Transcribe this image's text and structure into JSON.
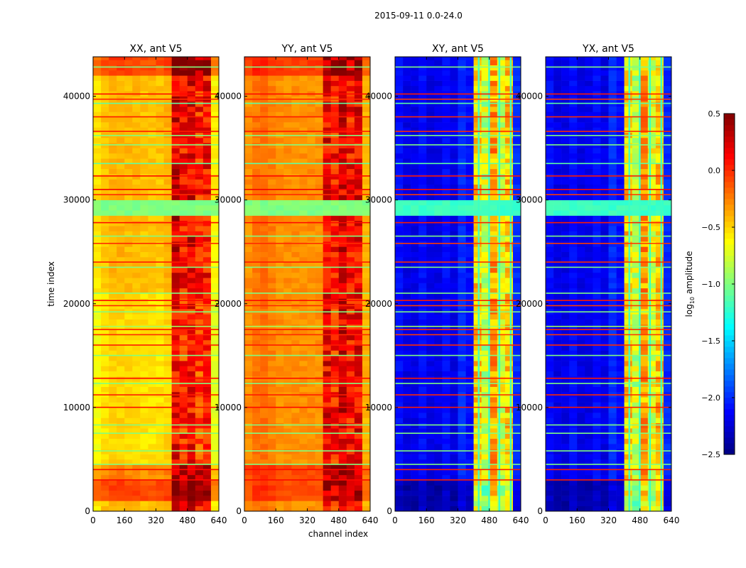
{
  "chart_data": {
    "type": "heatmap",
    "title": "2015-09-11 0.0-24.0",
    "xlabel": "channel index",
    "ylabel": "time index",
    "xlim": [
      0,
      640
    ],
    "ylim": [
      0,
      43800
    ],
    "xticks": [
      0,
      160,
      320,
      480,
      640
    ],
    "xtick_labels": [
      "0",
      "160",
      "320",
      "480",
      "640"
    ],
    "yticks": [
      0,
      10000,
      20000,
      30000,
      40000
    ],
    "ytick_labels": [
      "0",
      "10000",
      "20000",
      "30000",
      "40000"
    ],
    "colorbar": {
      "label_prefix": "log",
      "label_sub": "10",
      "label_suffix": " amplitude",
      "colormap": "jet",
      "range": [
        -2.5,
        0.5
      ],
      "ticks": [
        0.5,
        0.0,
        -0.5,
        -1.0,
        -1.5,
        -2.0,
        -2.5
      ],
      "tick_labels": [
        "0.5",
        "0.0",
        "−0.5",
        "−1.0",
        "−1.5",
        "−2.0",
        "−2.5"
      ]
    },
    "channel_bin_width": 40,
    "time_bin_width": 500,
    "panels": [
      {
        "title": "XX, ant V5",
        "channel_profile": [
          -0.55,
          -0.45,
          -0.4,
          -0.4,
          -0.42,
          -0.42,
          -0.45,
          -0.45,
          -0.45,
          -0.4,
          0.25,
          0.1,
          0.2,
          0.05,
          0.1,
          -0.6
        ],
        "bands": [
          {
            "start": 41800,
            "end": 43800,
            "offset": 0.35
          },
          {
            "start": 1000,
            "end": 3000,
            "offset": 0.35
          },
          {
            "start": 3000,
            "end": 4300,
            "offset": 0.15
          },
          {
            "start": 4300,
            "end": 21000,
            "offset": -0.1
          },
          {
            "start": 28500,
            "end": 29800,
            "value": -1.0
          }
        ],
        "vertical_lines": []
      },
      {
        "title": "YY, ant V5",
        "channel_profile": [
          -0.3,
          -0.22,
          -0.2,
          -0.25,
          -0.3,
          -0.3,
          -0.3,
          -0.3,
          -0.3,
          -0.3,
          0.15,
          0.05,
          0.22,
          0.1,
          0.15,
          -0.4
        ],
        "bands": [
          {
            "start": 41800,
            "end": 43800,
            "offset": 0.25
          },
          {
            "start": 1000,
            "end": 4300,
            "offset": 0.2
          },
          {
            "start": 28500,
            "end": 29800,
            "value": -1.0
          }
        ],
        "vertical_lines": []
      },
      {
        "title": "XY, ant V5",
        "channel_profile": [
          -2.1,
          -2.2,
          -2.2,
          -2.1,
          -2.2,
          -2.2,
          -2.1,
          -2.2,
          -2.0,
          -2.1,
          -0.5,
          -0.8,
          -0.35,
          -0.7,
          -0.45,
          -2.0
        ],
        "bands": [
          {
            "start": 28500,
            "end": 29800,
            "value": -1.2
          },
          {
            "start": 0,
            "end": 3000,
            "offset": -0.2
          }
        ],
        "vertical_lines": [
          425,
          478,
          530,
          588
        ]
      },
      {
        "title": "YX, ant V5",
        "channel_profile": [
          -2.1,
          -2.2,
          -2.2,
          -2.1,
          -2.2,
          -2.2,
          -2.1,
          -2.2,
          -2.0,
          -2.1,
          -0.5,
          -0.8,
          -0.35,
          -0.7,
          -0.45,
          -2.0
        ],
        "bands": [
          {
            "start": 28500,
            "end": 29800,
            "value": -1.2
          },
          {
            "start": 0,
            "end": 3000,
            "offset": -0.2
          }
        ],
        "vertical_lines": [
          425,
          478,
          530,
          588
        ]
      }
    ],
    "horizontal_lines": [
      {
        "time": 42800,
        "value": -1.0
      },
      {
        "time": 40200,
        "value": 0.1
      },
      {
        "time": 39700,
        "value": 0.0
      },
      {
        "time": 39300,
        "value": -1.1
      },
      {
        "time": 38000,
        "value": 0.05
      },
      {
        "time": 36600,
        "value": 0.05
      },
      {
        "time": 36200,
        "value": -1.0
      },
      {
        "time": 35300,
        "value": -1.0
      },
      {
        "time": 33500,
        "value": -1.1
      },
      {
        "time": 32300,
        "value": 0.1
      },
      {
        "time": 31000,
        "value": 0.15
      },
      {
        "time": 30500,
        "value": 0.0
      },
      {
        "time": 27800,
        "value": 0.1
      },
      {
        "time": 26500,
        "value": -1.0
      },
      {
        "time": 25800,
        "value": 0.0
      },
      {
        "time": 24000,
        "value": 0.05
      },
      {
        "time": 23500,
        "value": -1.0
      },
      {
        "time": 21000,
        "value": -1.0
      },
      {
        "time": 20300,
        "value": 0.1
      },
      {
        "time": 19800,
        "value": 0.0
      },
      {
        "time": 19200,
        "value": -1.0
      },
      {
        "time": 17800,
        "value": -0.9
      },
      {
        "time": 17500,
        "value": 0.05
      },
      {
        "time": 17000,
        "value": 0.0
      },
      {
        "time": 16000,
        "value": 0.05
      },
      {
        "time": 15000,
        "value": -1.0
      },
      {
        "time": 12800,
        "value": 0.1
      },
      {
        "time": 12300,
        "value": -1.0
      },
      {
        "time": 11200,
        "value": 0.05
      },
      {
        "time": 10000,
        "value": 0.1
      },
      {
        "time": 8300,
        "value": -1.0
      },
      {
        "time": 7500,
        "value": -1.0
      },
      {
        "time": 5800,
        "value": -1.0
      },
      {
        "time": 4500,
        "value": -1.0
      },
      {
        "time": 4000,
        "value": 0.1
      },
      {
        "time": 3000,
        "value": 0.1
      }
    ]
  }
}
